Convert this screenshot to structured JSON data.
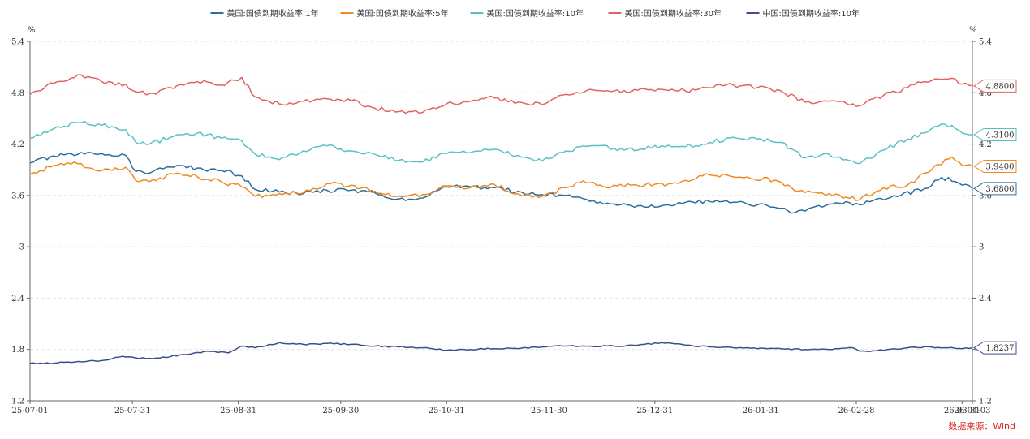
{
  "source_text": "数据来源：Wind",
  "chart_data": {
    "type": "line",
    "y_unit_left": "%",
    "y_unit_right": "%",
    "ylim": [
      1.2,
      5.4
    ],
    "yticks": [
      "1.2",
      "1.8",
      "2.4",
      "3",
      "3.6",
      "4.2",
      "4.8",
      "5.4"
    ],
    "grid": true,
    "legend_position": "top-center",
    "x_start": "2025-07-01",
    "x_end": "2026-04-03",
    "xtick_labels": [
      "25-07-01",
      "25-07-31",
      "25-08-31",
      "25-09-30",
      "25-10-31",
      "25-11-30",
      "25-12-31",
      "26-01-31",
      "26-02-28",
      "26-03-31",
      "26-04-03"
    ],
    "xtick_dates": [
      "2025-07-01",
      "2025-07-31",
      "2025-08-31",
      "2025-09-30",
      "2025-10-31",
      "2025-11-30",
      "2025-12-31",
      "2026-01-31",
      "2026-02-28",
      "2026-03-31",
      "2026-04-03"
    ],
    "series": [
      {
        "name": "美国:国债到期收益率:1年",
        "color": "#2c6f9c",
        "last_label": "3.6800",
        "points": [
          [
            "2025-07-01",
            3.98
          ],
          [
            "2025-07-08",
            4.06
          ],
          [
            "2025-07-15",
            4.08
          ],
          [
            "2025-07-22",
            4.09
          ],
          [
            "2025-07-29",
            4.07
          ],
          [
            "2025-08-01",
            3.88
          ],
          [
            "2025-08-05",
            3.86
          ],
          [
            "2025-08-08",
            3.92
          ],
          [
            "2025-08-12",
            3.93
          ],
          [
            "2025-08-19",
            3.92
          ],
          [
            "2025-08-26",
            3.89
          ],
          [
            "2025-09-01",
            3.83
          ],
          [
            "2025-09-05",
            3.67
          ],
          [
            "2025-09-12",
            3.64
          ],
          [
            "2025-09-19",
            3.62
          ],
          [
            "2025-09-26",
            3.66
          ],
          [
            "2025-10-03",
            3.66
          ],
          [
            "2025-10-10",
            3.63
          ],
          [
            "2025-10-17",
            3.56
          ],
          [
            "2025-10-24",
            3.57
          ],
          [
            "2025-10-31",
            3.7
          ],
          [
            "2025-11-07",
            3.7
          ],
          [
            "2025-11-14",
            3.69
          ],
          [
            "2025-11-21",
            3.65
          ],
          [
            "2025-11-28",
            3.61
          ],
          [
            "2025-12-05",
            3.6
          ],
          [
            "2025-12-12",
            3.53
          ],
          [
            "2025-12-19",
            3.5
          ],
          [
            "2025-12-26",
            3.48
          ],
          [
            "2026-01-02",
            3.48
          ],
          [
            "2026-01-09",
            3.52
          ],
          [
            "2026-01-16",
            3.53
          ],
          [
            "2026-01-23",
            3.52
          ],
          [
            "2026-01-30",
            3.49
          ],
          [
            "2026-02-06",
            3.45
          ],
          [
            "2026-02-10",
            3.4
          ],
          [
            "2026-02-16",
            3.47
          ],
          [
            "2026-02-23",
            3.51
          ],
          [
            "2026-03-01",
            3.49
          ],
          [
            "2026-03-06",
            3.56
          ],
          [
            "2026-03-13",
            3.6
          ],
          [
            "2026-03-20",
            3.68
          ],
          [
            "2026-03-24",
            3.78
          ],
          [
            "2026-03-27",
            3.81
          ],
          [
            "2026-03-31",
            3.72
          ],
          [
            "2026-04-03",
            3.68
          ]
        ]
      },
      {
        "name": "美国:国债到期收益率:5年",
        "color": "#f08a24",
        "last_label": "3.9400",
        "points": [
          [
            "2025-07-01",
            3.85
          ],
          [
            "2025-07-08",
            3.95
          ],
          [
            "2025-07-15",
            3.97
          ],
          [
            "2025-07-22",
            3.89
          ],
          [
            "2025-07-29",
            3.93
          ],
          [
            "2025-08-01",
            3.77
          ],
          [
            "2025-08-05",
            3.76
          ],
          [
            "2025-08-12",
            3.85
          ],
          [
            "2025-08-19",
            3.82
          ],
          [
            "2025-08-26",
            3.76
          ],
          [
            "2025-09-01",
            3.7
          ],
          [
            "2025-09-05",
            3.59
          ],
          [
            "2025-09-12",
            3.62
          ],
          [
            "2025-09-19",
            3.63
          ],
          [
            "2025-09-26",
            3.74
          ],
          [
            "2025-10-03",
            3.72
          ],
          [
            "2025-10-10",
            3.65
          ],
          [
            "2025-10-17",
            3.59
          ],
          [
            "2025-10-24",
            3.61
          ],
          [
            "2025-10-31",
            3.71
          ],
          [
            "2025-11-07",
            3.69
          ],
          [
            "2025-11-14",
            3.73
          ],
          [
            "2025-11-21",
            3.62
          ],
          [
            "2025-11-28",
            3.59
          ],
          [
            "2025-12-05",
            3.69
          ],
          [
            "2025-12-10",
            3.77
          ],
          [
            "2025-12-17",
            3.69
          ],
          [
            "2025-12-24",
            3.72
          ],
          [
            "2025-12-31",
            3.73
          ],
          [
            "2026-01-07",
            3.74
          ],
          [
            "2026-01-14",
            3.83
          ],
          [
            "2026-01-21",
            3.84
          ],
          [
            "2026-01-28",
            3.8
          ],
          [
            "2026-02-04",
            3.78
          ],
          [
            "2026-02-11",
            3.65
          ],
          [
            "2026-02-18",
            3.63
          ],
          [
            "2026-02-25",
            3.58
          ],
          [
            "2026-03-01",
            3.55
          ],
          [
            "2026-03-08",
            3.69
          ],
          [
            "2026-03-15",
            3.72
          ],
          [
            "2026-03-20",
            3.86
          ],
          [
            "2026-03-24",
            3.96
          ],
          [
            "2026-03-28",
            4.05
          ],
          [
            "2026-03-31",
            3.95
          ],
          [
            "2026-04-03",
            3.94
          ]
        ]
      },
      {
        "name": "美国:国债到期收益率:10年",
        "color": "#5ac1c2",
        "last_label": "4.3100",
        "points": [
          [
            "2025-07-01",
            4.27
          ],
          [
            "2025-07-08",
            4.38
          ],
          [
            "2025-07-15",
            4.45
          ],
          [
            "2025-07-22",
            4.42
          ],
          [
            "2025-07-29",
            4.37
          ],
          [
            "2025-08-01",
            4.22
          ],
          [
            "2025-08-05",
            4.2
          ],
          [
            "2025-08-12",
            4.29
          ],
          [
            "2025-08-19",
            4.33
          ],
          [
            "2025-08-26",
            4.27
          ],
          [
            "2025-09-01",
            4.24
          ],
          [
            "2025-09-05",
            4.08
          ],
          [
            "2025-09-12",
            4.02
          ],
          [
            "2025-09-19",
            4.12
          ],
          [
            "2025-09-26",
            4.18
          ],
          [
            "2025-10-03",
            4.12
          ],
          [
            "2025-10-10",
            4.08
          ],
          [
            "2025-10-17",
            4.01
          ],
          [
            "2025-10-24",
            3.99
          ],
          [
            "2025-10-31",
            4.09
          ],
          [
            "2025-11-07",
            4.1
          ],
          [
            "2025-11-14",
            4.14
          ],
          [
            "2025-11-21",
            4.07
          ],
          [
            "2025-11-28",
            4.0
          ],
          [
            "2025-12-05",
            4.12
          ],
          [
            "2025-12-12",
            4.18
          ],
          [
            "2025-12-19",
            4.15
          ],
          [
            "2025-12-26",
            4.13
          ],
          [
            "2026-01-02",
            4.18
          ],
          [
            "2026-01-09",
            4.17
          ],
          [
            "2026-01-16",
            4.22
          ],
          [
            "2026-01-23",
            4.28
          ],
          [
            "2026-01-30",
            4.26
          ],
          [
            "2026-02-06",
            4.22
          ],
          [
            "2026-02-13",
            4.04
          ],
          [
            "2026-02-20",
            4.08
          ],
          [
            "2026-02-27",
            4.0
          ],
          [
            "2026-03-01",
            3.97
          ],
          [
            "2026-03-08",
            4.13
          ],
          [
            "2026-03-15",
            4.26
          ],
          [
            "2026-03-20",
            4.33
          ],
          [
            "2026-03-24",
            4.41
          ],
          [
            "2026-03-28",
            4.42
          ],
          [
            "2026-03-31",
            4.33
          ],
          [
            "2026-04-03",
            4.31
          ]
        ]
      },
      {
        "name": "美国:国债到期收益率:30年",
        "color": "#e06464",
        "last_label": "4.8800",
        "points": [
          [
            "2025-07-01",
            4.78
          ],
          [
            "2025-07-08",
            4.91
          ],
          [
            "2025-07-15",
            5.01
          ],
          [
            "2025-07-22",
            4.93
          ],
          [
            "2025-07-29",
            4.9
          ],
          [
            "2025-08-01",
            4.81
          ],
          [
            "2025-08-05",
            4.79
          ],
          [
            "2025-08-12",
            4.85
          ],
          [
            "2025-08-19",
            4.93
          ],
          [
            "2025-08-26",
            4.89
          ],
          [
            "2025-09-01",
            4.98
          ],
          [
            "2025-09-05",
            4.75
          ],
          [
            "2025-09-12",
            4.67
          ],
          [
            "2025-09-19",
            4.7
          ],
          [
            "2025-09-26",
            4.73
          ],
          [
            "2025-10-03",
            4.71
          ],
          [
            "2025-10-10",
            4.62
          ],
          [
            "2025-10-17",
            4.58
          ],
          [
            "2025-10-24",
            4.57
          ],
          [
            "2025-10-31",
            4.67
          ],
          [
            "2025-11-07",
            4.7
          ],
          [
            "2025-11-14",
            4.74
          ],
          [
            "2025-11-21",
            4.69
          ],
          [
            "2025-11-28",
            4.66
          ],
          [
            "2025-12-05",
            4.78
          ],
          [
            "2025-12-12",
            4.84
          ],
          [
            "2025-12-19",
            4.82
          ],
          [
            "2025-12-26",
            4.83
          ],
          [
            "2026-01-02",
            4.84
          ],
          [
            "2026-01-09",
            4.82
          ],
          [
            "2026-01-16",
            4.86
          ],
          [
            "2026-01-23",
            4.89
          ],
          [
            "2026-01-30",
            4.86
          ],
          [
            "2026-02-06",
            4.82
          ],
          [
            "2026-02-13",
            4.69
          ],
          [
            "2026-02-20",
            4.7
          ],
          [
            "2026-02-27",
            4.67
          ],
          [
            "2026-03-01",
            4.65
          ],
          [
            "2026-03-08",
            4.77
          ],
          [
            "2026-03-15",
            4.86
          ],
          [
            "2026-03-20",
            4.93
          ],
          [
            "2026-03-24",
            4.96
          ],
          [
            "2026-03-28",
            4.97
          ],
          [
            "2026-03-31",
            4.9
          ],
          [
            "2026-04-03",
            4.88
          ]
        ]
      },
      {
        "name": "中国:国债到期收益率:10年",
        "color": "#3c4e8c",
        "last_label": "1.8237",
        "points": [
          [
            "2025-07-01",
            1.64
          ],
          [
            "2025-07-08",
            1.64
          ],
          [
            "2025-07-15",
            1.66
          ],
          [
            "2025-07-22",
            1.67
          ],
          [
            "2025-07-28",
            1.72
          ],
          [
            "2025-08-01",
            1.7
          ],
          [
            "2025-08-08",
            1.7
          ],
          [
            "2025-08-15",
            1.74
          ],
          [
            "2025-08-22",
            1.78
          ],
          [
            "2025-08-28",
            1.76
          ],
          [
            "2025-09-01",
            1.84
          ],
          [
            "2025-09-05",
            1.82
          ],
          [
            "2025-09-12",
            1.88
          ],
          [
            "2025-09-19",
            1.86
          ],
          [
            "2025-09-26",
            1.87
          ],
          [
            "2025-10-03",
            1.86
          ],
          [
            "2025-10-10",
            1.84
          ],
          [
            "2025-10-17",
            1.83
          ],
          [
            "2025-10-24",
            1.82
          ],
          [
            "2025-10-31",
            1.79
          ],
          [
            "2025-11-07",
            1.8
          ],
          [
            "2025-11-14",
            1.81
          ],
          [
            "2025-11-21",
            1.81
          ],
          [
            "2025-11-28",
            1.83
          ],
          [
            "2025-12-05",
            1.84
          ],
          [
            "2025-12-12",
            1.84
          ],
          [
            "2025-12-19",
            1.84
          ],
          [
            "2025-12-26",
            1.85
          ],
          [
            "2026-01-02",
            1.88
          ],
          [
            "2026-01-09",
            1.85
          ],
          [
            "2026-01-16",
            1.83
          ],
          [
            "2026-01-23",
            1.82
          ],
          [
            "2026-01-30",
            1.81
          ],
          [
            "2026-02-06",
            1.81
          ],
          [
            "2026-02-13",
            1.8
          ],
          [
            "2026-02-20",
            1.8
          ],
          [
            "2026-02-27",
            1.82
          ],
          [
            "2026-03-01",
            1.78
          ],
          [
            "2026-03-08",
            1.79
          ],
          [
            "2026-03-15",
            1.82
          ],
          [
            "2026-03-22",
            1.83
          ],
          [
            "2026-03-27",
            1.82
          ],
          [
            "2026-03-31",
            1.81
          ],
          [
            "2026-04-03",
            1.82
          ]
        ]
      }
    ]
  }
}
